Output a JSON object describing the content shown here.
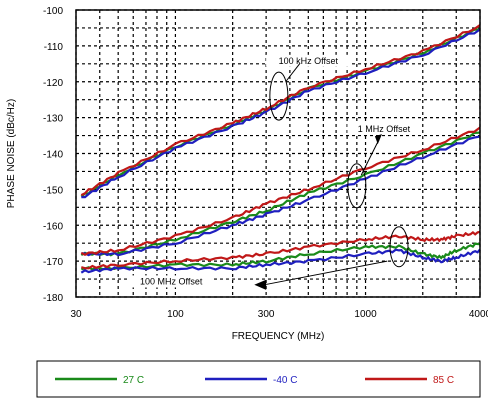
{
  "chart_data": {
    "type": "line",
    "xlabel": "FREQUENCY (MHz)",
    "ylabel": "PHASE NOISE (dBc/Hz)",
    "xscale": "log",
    "xlim": [
      30,
      4000
    ],
    "ylim": [
      -180,
      -100
    ],
    "x_ticks": [
      30,
      100,
      300,
      1000,
      4000
    ],
    "x_tick_labels": [
      "30",
      "100",
      "300",
      "1000",
      "4000"
    ],
    "y_ticks": [
      -100,
      -110,
      -120,
      -130,
      -140,
      -150,
      -160,
      -170,
      -180
    ],
    "y_tick_labels": [
      "-100",
      "-110",
      "-120",
      "-130",
      "-140",
      "-150",
      "-160",
      "-170",
      "-180"
    ],
    "grid": "dashed, major and minor",
    "legend_position": "below plot",
    "annotations": [
      {
        "text": "100 kHz Offset",
        "x": 500,
        "y": -115
      },
      {
        "text": "1 MHz Offset",
        "x": 1250,
        "y": -134
      },
      {
        "text": "100 MHz Offset",
        "x": 95,
        "y": -176.5
      }
    ],
    "series": [
      {
        "name": "27 C",
        "color": "#1a8a1a",
        "group": "100 kHz Offset",
        "x": [
          32,
          50,
          100,
          200,
          300,
          500,
          1000,
          2000,
          4000
        ],
        "y": [
          -152,
          -146,
          -138,
          -132,
          -128,
          -122,
          -117,
          -112,
          -105
        ]
      },
      {
        "name": "-40 C",
        "color": "#1f1fbf",
        "group": "100 kHz Offset",
        "x": [
          32,
          50,
          100,
          200,
          300,
          500,
          1000,
          2000,
          4000
        ],
        "y": [
          -152.5,
          -146.5,
          -138.5,
          -132.5,
          -128.5,
          -122.5,
          -117.5,
          -112.5,
          -105.5
        ]
      },
      {
        "name": "85 C",
        "color": "#c01818",
        "group": "100 kHz Offset",
        "x": [
          32,
          50,
          100,
          200,
          300,
          500,
          1000,
          2000,
          4000
        ],
        "y": [
          -151.5,
          -145.5,
          -137.5,
          -131.5,
          -127.5,
          -121.5,
          -116.5,
          -111.5,
          -104.5
        ]
      },
      {
        "name": "27 C",
        "color": "#1a8a1a",
        "group": "1 MHz Offset",
        "x": [
          32,
          50,
          100,
          200,
          300,
          500,
          1000,
          2000,
          4000
        ],
        "y": [
          -168,
          -168,
          -164,
          -159,
          -156,
          -151,
          -146,
          -140,
          -134
        ]
      },
      {
        "name": "-40 C",
        "color": "#1f1fbf",
        "group": "1 MHz Offset",
        "x": [
          32,
          50,
          100,
          200,
          300,
          500,
          1000,
          2000,
          4000
        ],
        "y": [
          -168,
          -168,
          -165,
          -160,
          -157,
          -153,
          -147,
          -141,
          -135
        ]
      },
      {
        "name": "85 C",
        "color": "#c01818",
        "group": "1 MHz Offset",
        "x": [
          32,
          50,
          100,
          200,
          300,
          500,
          1000,
          2000,
          4000
        ],
        "y": [
          -168,
          -167,
          -163,
          -158,
          -154,
          -150,
          -144,
          -139,
          -133
        ]
      },
      {
        "name": "27 C",
        "color": "#1a8a1a",
        "group": "100 MHz Offset",
        "x": [
          32,
          50,
          100,
          200,
          300,
          500,
          1000,
          1500,
          2000,
          2500,
          3000,
          4000
        ],
        "y": [
          -172,
          -172,
          -171,
          -171,
          -170,
          -168,
          -166,
          -166,
          -168,
          -169,
          -167,
          -165
        ]
      },
      {
        "name": "-40 C",
        "color": "#1f1fbf",
        "group": "100 MHz Offset",
        "x": [
          32,
          50,
          100,
          200,
          300,
          500,
          1000,
          1500,
          2000,
          2500,
          3000,
          4000
        ],
        "y": [
          -173,
          -172,
          -172,
          -172,
          -171,
          -170,
          -168,
          -167,
          -169,
          -170,
          -169,
          -167
        ]
      },
      {
        "name": "85 C",
        "color": "#c01818",
        "group": "100 MHz Offset",
        "x": [
          32,
          50,
          100,
          200,
          300,
          500,
          1000,
          1500,
          2000,
          2500,
          3000,
          4000
        ],
        "y": [
          -172,
          -171,
          -170,
          -169,
          -168,
          -166,
          -164,
          -163,
          -164,
          -164,
          -163,
          -162
        ]
      }
    ],
    "legend": [
      {
        "name": "27 C",
        "color": "#1a8a1a"
      },
      {
        "name": "-40 C",
        "color": "#1f1fbf"
      },
      {
        "name": "85 C",
        "color": "#c01818"
      }
    ]
  }
}
